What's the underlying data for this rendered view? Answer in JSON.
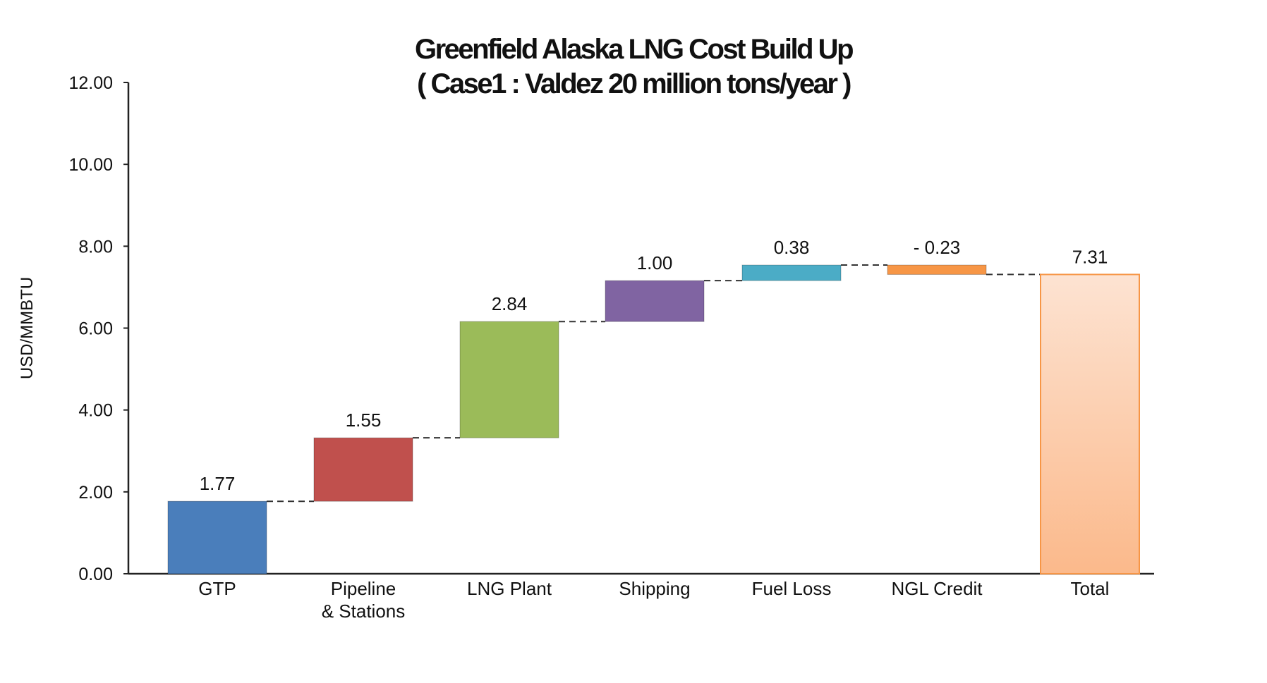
{
  "chart_data": {
    "type": "bar",
    "subtype": "waterfall",
    "title": "Greenfield Alaska LNG Cost Build Up",
    "subtitle": "( Case1 : Valdez 20 million tons/year )",
    "ylabel": "USD/MMBTU",
    "xlabel": "",
    "ylim": [
      0,
      12
    ],
    "yticks": [
      "0.00",
      "2.00",
      "4.00",
      "6.00",
      "8.00",
      "10.00",
      "12.00"
    ],
    "grid": false,
    "legend": "none",
    "categories": [
      [
        "GTP"
      ],
      [
        "Pipeline",
        "& Stations"
      ],
      [
        "LNG Plant"
      ],
      [
        "Shipping"
      ],
      [
        "Fuel Loss"
      ],
      [
        "NGL Credit"
      ],
      [
        "Total"
      ]
    ],
    "values": [
      1.77,
      1.55,
      2.84,
      1.0,
      0.38,
      -0.23,
      7.31
    ],
    "value_labels": [
      "1.77",
      "1.55",
      "2.84",
      "1.00",
      "0.38",
      "- 0.23",
      "7.31"
    ],
    "is_total": [
      false,
      false,
      false,
      false,
      false,
      false,
      true
    ],
    "colors": [
      "#4a7ebb",
      "#c0504d",
      "#9bbb59",
      "#8064a2",
      "#4bacc6",
      "#f79646",
      "#fbbd91"
    ],
    "total_gradient": [
      "#fde3d2",
      "#fbb98b"
    ],
    "total_border": "#f79646",
    "connector_color": "#333333"
  }
}
